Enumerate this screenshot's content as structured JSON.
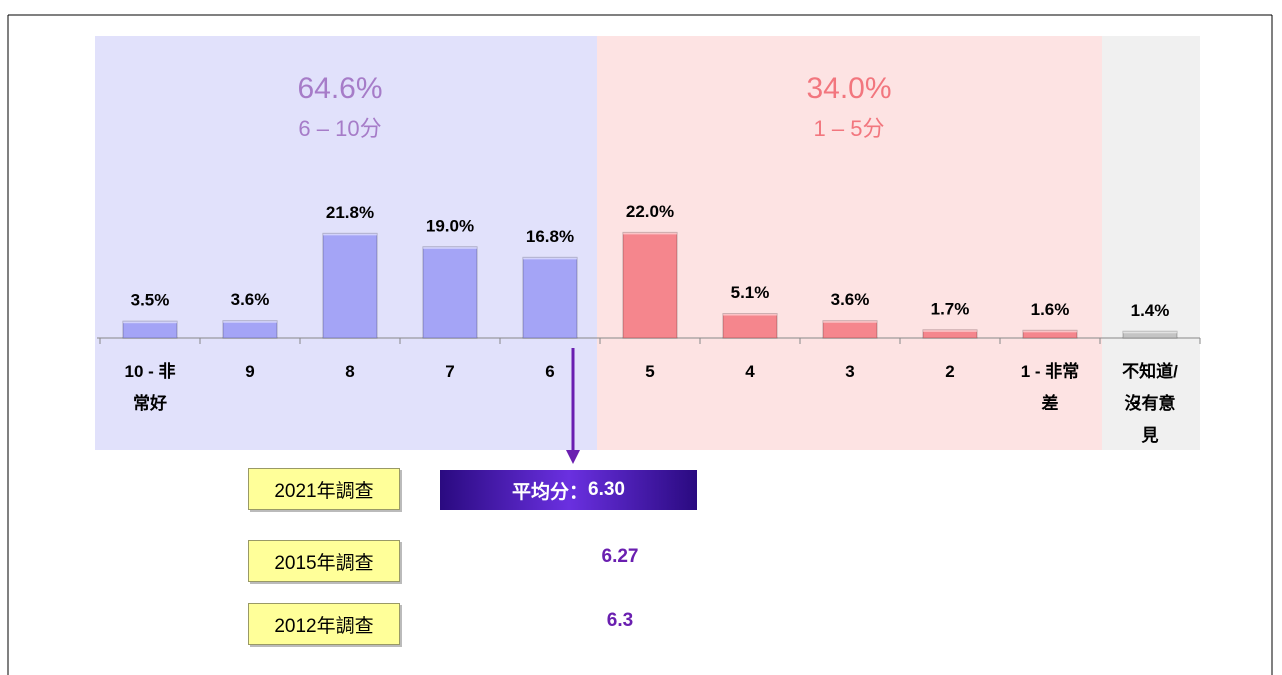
{
  "chart_data": {
    "type": "bar",
    "categories": [
      "10 - 非常好",
      "9",
      "8",
      "7",
      "6",
      "5",
      "4",
      "3",
      "2",
      "1 - 非常差",
      "不知道/沒有意見"
    ],
    "values": [
      3.5,
      3.6,
      21.8,
      19.0,
      16.8,
      22.0,
      5.1,
      3.6,
      1.7,
      1.6,
      1.4
    ],
    "value_labels": [
      "3.5%",
      "3.6%",
      "21.8%",
      "19.0%",
      "16.8%",
      "22.0%",
      "5.1%",
      "3.6%",
      "1.7%",
      "1.6%",
      "1.4%"
    ],
    "colors": [
      "#a4a4f6",
      "#a4a4f6",
      "#a4a4f6",
      "#a4a4f6",
      "#a4a4f6",
      "#f5868d",
      "#f5868d",
      "#f5868d",
      "#f5868d",
      "#f5868d",
      "#c4c4c4"
    ],
    "ylim": [
      0,
      25
    ],
    "groups": [
      {
        "total": "64.6%",
        "range": "6 – 10分"
      },
      {
        "total": "34.0%",
        "range": "1 – 5分"
      }
    ]
  },
  "surveys": [
    {
      "label": "2021年調查",
      "score": "6.30"
    },
    {
      "label": "2015年調查",
      "score": "6.27"
    },
    {
      "label": "2012年調查",
      "score": "6.3"
    }
  ],
  "average_prefix": "平均分："
}
